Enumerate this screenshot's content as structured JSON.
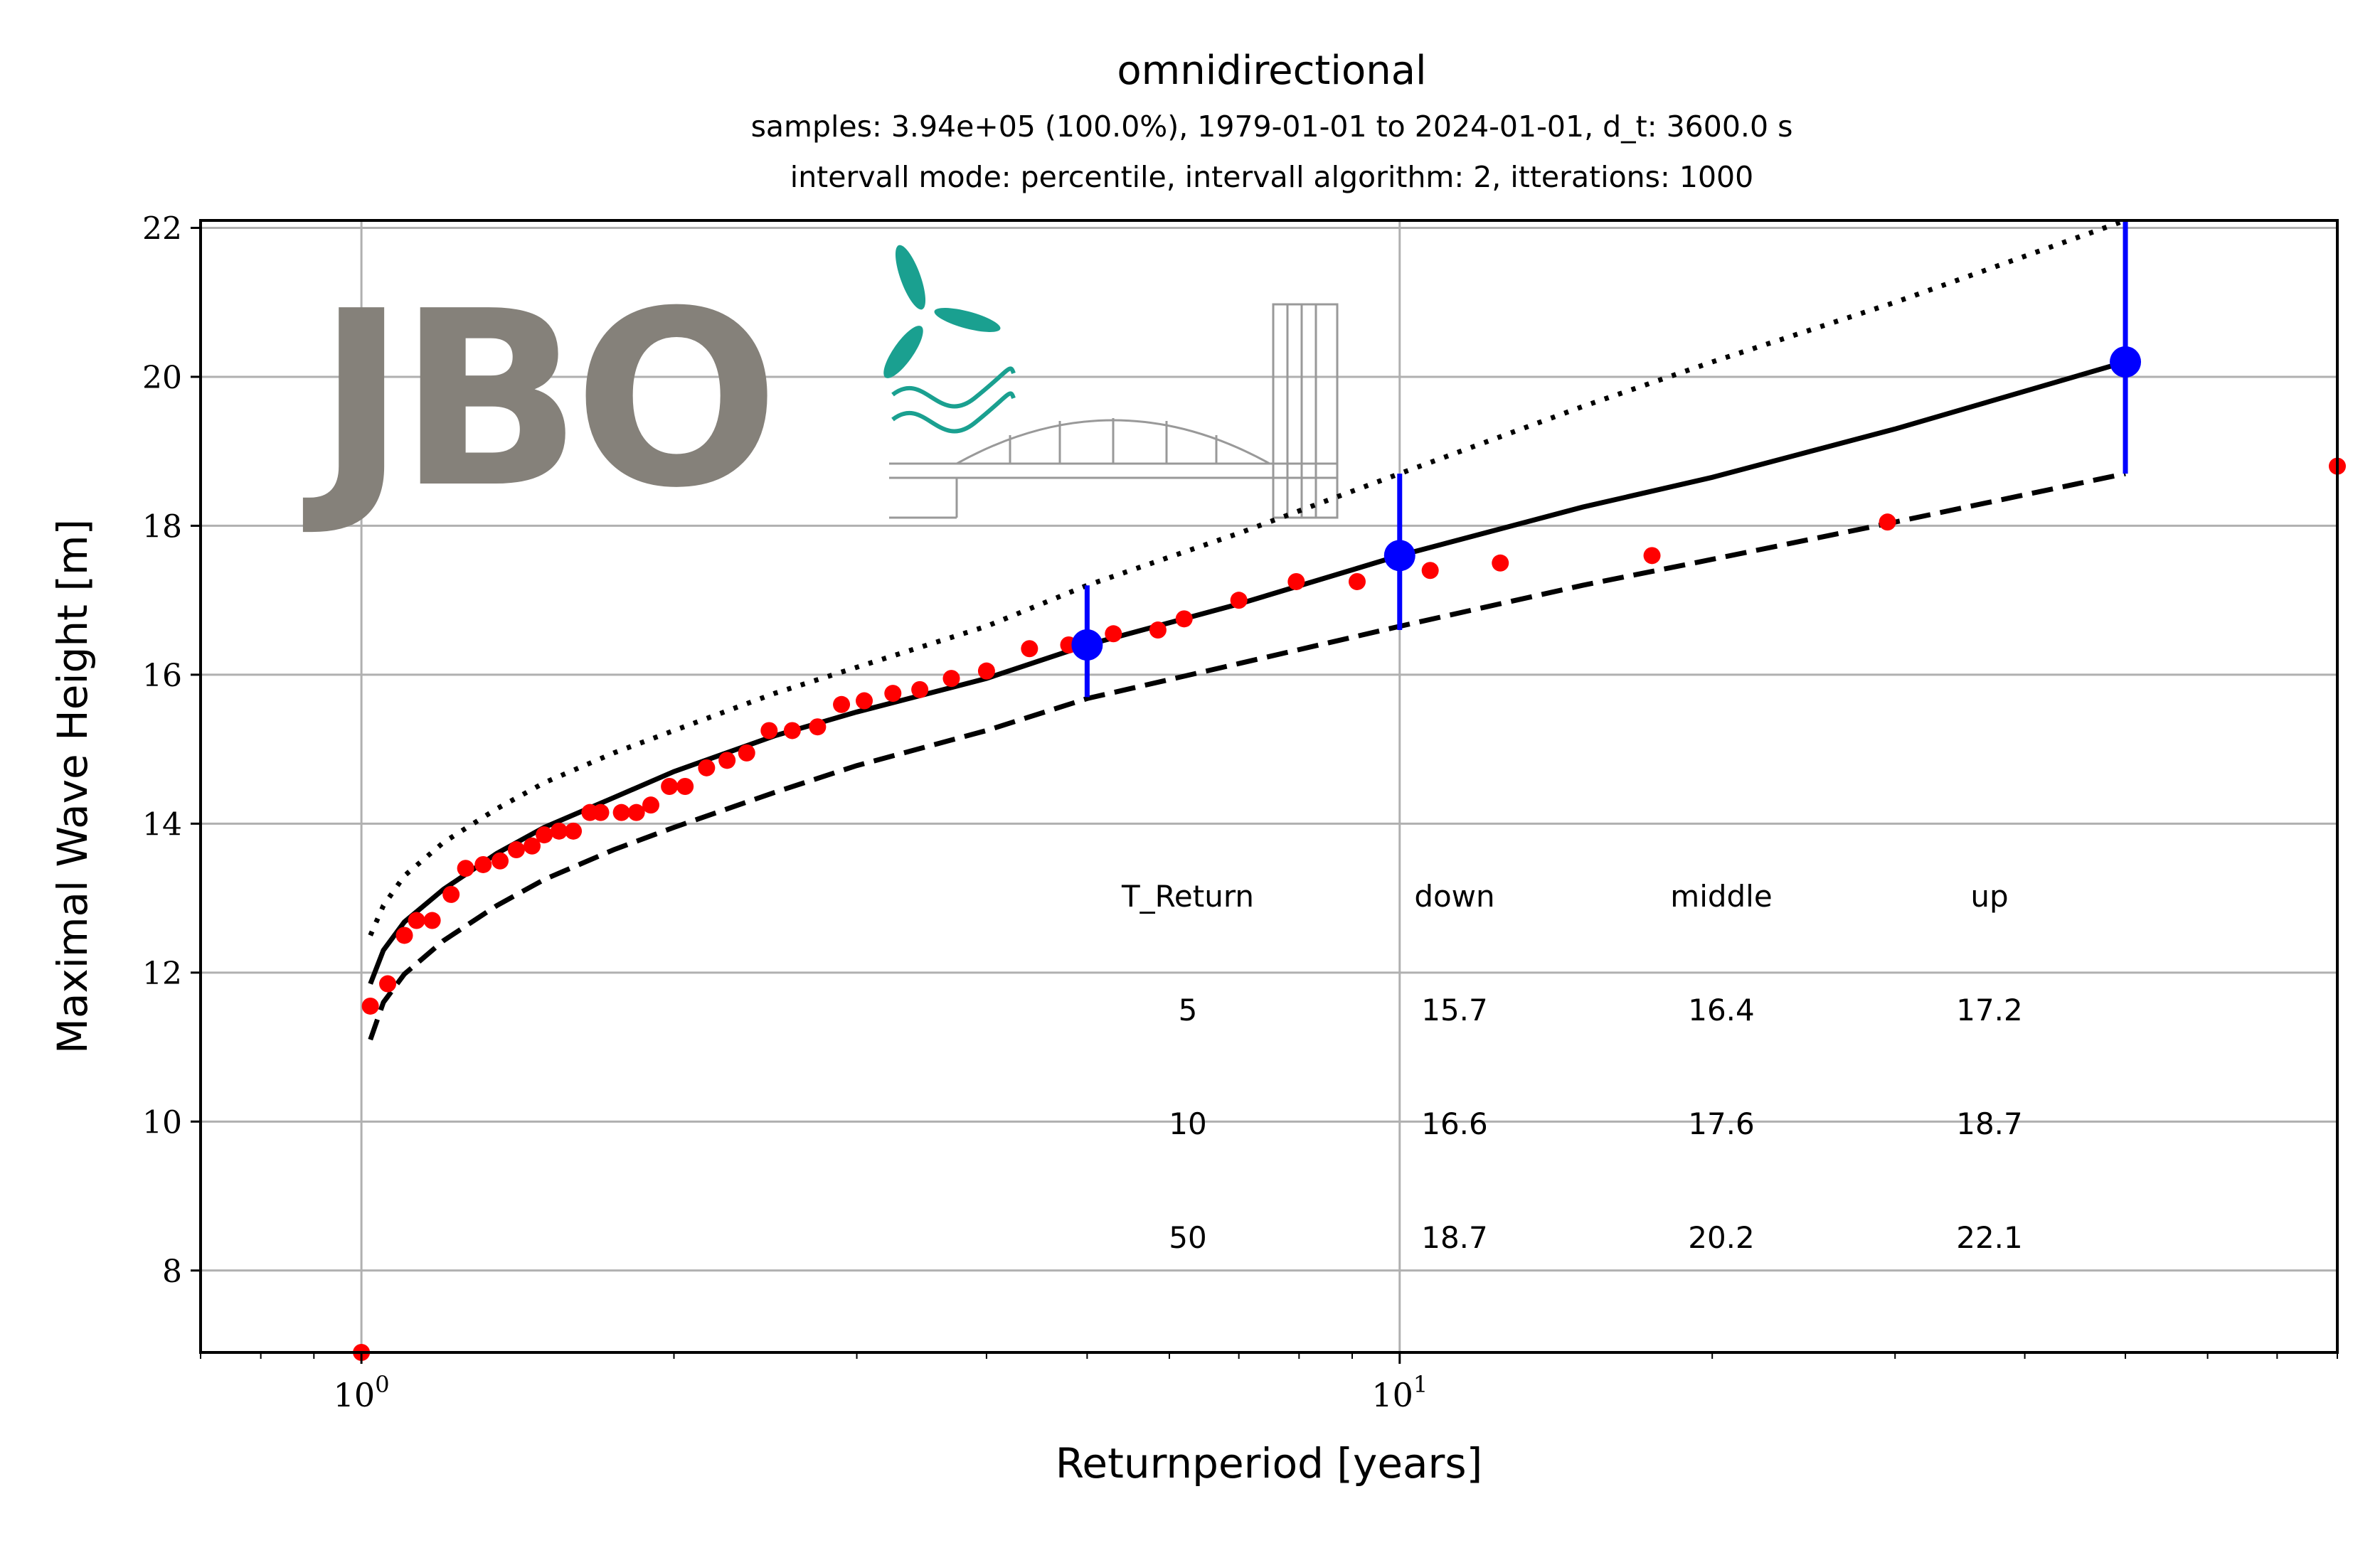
{
  "chart_data": {
    "type": "scatter",
    "title": "omnidirectional",
    "subtitle_lines": [
      "samples: 3.94e+05 (100.0%), 1979-01-01 to 2024-01-01, d_t: 3600.0 s",
      "intervall mode: percentile, intervall algorithm: 2, itterations: 1000"
    ],
    "xlabel": "Returnperiod [years]",
    "ylabel": "Maximal Wave Height [m]",
    "x_scale": "log",
    "xlim": [
      0.7,
      80
    ],
    "ylim": [
      6.9,
      22.1
    ],
    "x_ticks": [
      {
        "value": 1,
        "base": "10",
        "exp": "0"
      },
      {
        "value": 10,
        "base": "10",
        "exp": "1"
      }
    ],
    "y_ticks": [
      8,
      10,
      12,
      14,
      16,
      18,
      20,
      22
    ],
    "grid": true,
    "logo_text": "JBO",
    "series": [
      {
        "kind": "empirical points",
        "color": "#ff0000",
        "points": [
          [
            1.0,
            6.9
          ],
          [
            1.02,
            11.55
          ],
          [
            1.06,
            11.85
          ],
          [
            1.1,
            12.5
          ],
          [
            1.13,
            12.7
          ],
          [
            1.17,
            12.7
          ],
          [
            1.22,
            13.05
          ],
          [
            1.26,
            13.4
          ],
          [
            1.31,
            13.45
          ],
          [
            1.36,
            13.5
          ],
          [
            1.41,
            13.65
          ],
          [
            1.46,
            13.7
          ],
          [
            1.5,
            13.85
          ],
          [
            1.55,
            13.9
          ],
          [
            1.6,
            13.9
          ],
          [
            1.66,
            14.15
          ],
          [
            1.7,
            14.15
          ],
          [
            1.78,
            14.15
          ],
          [
            1.84,
            14.15
          ],
          [
            1.9,
            14.25
          ],
          [
            1.98,
            14.5
          ],
          [
            2.05,
            14.5
          ],
          [
            2.15,
            14.75
          ],
          [
            2.25,
            14.85
          ],
          [
            2.35,
            14.95
          ],
          [
            2.47,
            15.25
          ],
          [
            2.6,
            15.25
          ],
          [
            2.75,
            15.3
          ],
          [
            2.9,
            15.6
          ],
          [
            3.05,
            15.65
          ],
          [
            3.25,
            15.75
          ],
          [
            3.45,
            15.8
          ],
          [
            3.7,
            15.95
          ],
          [
            4.0,
            16.05
          ],
          [
            4.4,
            16.35
          ],
          [
            4.8,
            16.4
          ],
          [
            5.3,
            16.55
          ],
          [
            5.85,
            16.6
          ],
          [
            6.2,
            16.75
          ],
          [
            7.0,
            17.0
          ],
          [
            7.95,
            17.25
          ],
          [
            9.1,
            17.25
          ],
          [
            10.7,
            17.4
          ],
          [
            12.5,
            17.5
          ],
          [
            17.5,
            17.6
          ],
          [
            29.5,
            18.05
          ],
          [
            80.0,
            18.8
          ]
        ]
      },
      {
        "kind": "fit middle",
        "color": "#000000",
        "line": "solid",
        "x": [
          1.02,
          1.05,
          1.1,
          1.2,
          1.35,
          1.5,
          1.75,
          2.0,
          2.5,
          3.0,
          4.0,
          5.0,
          7.0,
          10.0,
          15.0,
          20.0,
          30.0,
          50.0
        ],
        "y": [
          11.85,
          12.3,
          12.68,
          13.12,
          13.6,
          13.95,
          14.35,
          14.7,
          15.18,
          15.5,
          15.95,
          16.4,
          16.95,
          17.6,
          18.25,
          18.65,
          19.3,
          20.2
        ]
      },
      {
        "kind": "fit lower",
        "color": "#000000",
        "line": "dashed",
        "x": [
          1.02,
          1.05,
          1.1,
          1.2,
          1.35,
          1.5,
          1.75,
          2.0,
          2.5,
          3.0,
          4.0,
          5.0,
          7.0,
          10.0,
          15.0,
          20.0,
          30.0,
          50.0
        ],
        "y": [
          11.1,
          11.6,
          11.98,
          12.43,
          12.9,
          13.25,
          13.65,
          13.95,
          14.42,
          14.78,
          15.25,
          15.68,
          16.15,
          16.65,
          17.2,
          17.55,
          18.05,
          18.7
        ]
      },
      {
        "kind": "fit upper",
        "color": "#000000",
        "line": "dotted",
        "x": [
          1.02,
          1.05,
          1.1,
          1.2,
          1.35,
          1.5,
          1.75,
          2.0,
          2.5,
          3.0,
          4.0,
          5.0,
          7.0,
          10.0,
          15.0,
          20.0,
          30.0,
          50.0
        ],
        "y": [
          12.5,
          12.9,
          13.3,
          13.75,
          14.2,
          14.55,
          14.95,
          15.25,
          15.75,
          16.1,
          16.65,
          17.2,
          17.9,
          18.7,
          19.6,
          20.2,
          21.0,
          22.1
        ]
      },
      {
        "kind": "return levels",
        "color": "#0000ff",
        "points": [
          {
            "x": 5,
            "y": 16.4,
            "low": 15.7,
            "high": 17.2
          },
          {
            "x": 10,
            "y": 17.6,
            "low": 16.6,
            "high": 18.7
          },
          {
            "x": 50,
            "y": 20.2,
            "low": 18.7,
            "high": 22.1
          }
        ]
      }
    ],
    "table": {
      "headers": [
        "T_Return",
        "down",
        "middle",
        "up"
      ],
      "rows": [
        [
          "5",
          "15.7",
          "16.4",
          "17.2"
        ],
        [
          "10",
          "16.6",
          "17.6",
          "18.7"
        ],
        [
          "50",
          "18.7",
          "20.2",
          "22.1"
        ]
      ]
    }
  }
}
